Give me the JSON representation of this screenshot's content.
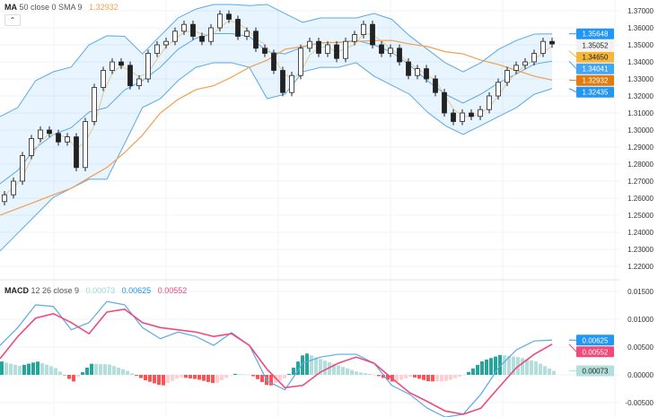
{
  "main_legend": {
    "name": "MA",
    "params": "50 close 0 SMA 9",
    "value": "1.32932"
  },
  "macd_legend": {
    "name": "MACD",
    "params": "12 26 close 9",
    "hist": "0.00073",
    "macd": "0.00625",
    "signal": "0.00552"
  },
  "colors": {
    "band": "#5aaae8",
    "band_fill": "rgba(33,150,243,0.10)",
    "ma50": "#f0a050",
    "sma9": "#e6c98f",
    "macd": "#5aaae8",
    "signal": "#f0497a",
    "hist_up": "#26a69a",
    "hist_up_light": "#b2dfdb",
    "hist_dn": "#ff5252",
    "hist_dn_light": "#ffcdd2"
  },
  "chart_data": [
    {
      "type": "candlestick",
      "ylim": [
        1.215,
        1.374
      ],
      "y_ticks": [
        "1.22000",
        "1.23000",
        "1.24000",
        "1.25000",
        "1.26000",
        "1.27000",
        "1.28000",
        "1.29000",
        "1.30000",
        "1.31000",
        "1.32000",
        "1.33000",
        "1.34000",
        "1.35000",
        "1.36000",
        "1.37000"
      ],
      "first_open": 1.258,
      "closes": [
        1.262,
        1.27,
        1.285,
        1.295,
        1.3,
        1.298,
        1.293,
        1.296,
        1.278,
        1.305,
        1.325,
        1.335,
        1.34,
        1.338,
        1.326,
        1.33,
        1.345,
        1.35,
        1.352,
        1.358,
        1.362,
        1.355,
        1.352,
        1.36,
        1.368,
        1.365,
        1.355,
        1.358,
        1.348,
        1.345,
        1.335,
        1.322,
        1.332,
        1.348,
        1.352,
        1.345,
        1.35,
        1.342,
        1.352,
        1.356,
        1.362,
        1.35,
        1.345,
        1.348,
        1.34,
        1.332,
        1.336,
        1.33,
        1.322,
        1.31,
        1.305,
        1.31,
        1.308,
        1.312,
        1.32,
        1.328,
        1.335,
        1.338,
        1.34,
        1.345,
        1.352,
        1.3505
      ],
      "bollinger_upper": [
        1.3079,
        1.3132,
        1.329,
        1.3342,
        1.337,
        1.35,
        1.3553,
        1.355,
        1.3447,
        1.3553,
        1.3658,
        1.371,
        1.3737,
        1.3737,
        1.373,
        1.3737,
        1.3684,
        1.3632,
        1.3658,
        1.3658,
        1.3658,
        1.3684,
        1.365,
        1.3553,
        1.3474,
        1.3395,
        1.3342,
        1.3395,
        1.3474,
        1.3526,
        1.3563,
        1.35648
      ],
      "bollinger_lower": [
        1.229,
        1.2395,
        1.25,
        1.2605,
        1.2658,
        1.2711,
        1.2711,
        1.2921,
        1.3132,
        1.3184,
        1.329,
        1.3368,
        1.3395,
        1.3395,
        1.3368,
        1.3184,
        1.321,
        1.3342,
        1.3368,
        1.3368,
        1.3395,
        1.3316,
        1.3263,
        1.321,
        1.3105,
        1.3026,
        1.2974,
        1.3026,
        1.3079,
        1.3132,
        1.321,
        1.32435
      ],
      "ma50": [
        1.25,
        1.254,
        1.2579,
        1.262,
        1.2658,
        1.272,
        1.278,
        1.2868,
        1.297,
        1.31,
        1.318,
        1.3237,
        1.326,
        1.331,
        1.3368,
        1.341,
        1.3474,
        1.349,
        1.3511,
        1.3515,
        1.352,
        1.3525,
        1.3526,
        1.3505,
        1.349,
        1.346,
        1.3447,
        1.341,
        1.3384,
        1.335,
        1.3316,
        1.32932
      ],
      "price_labels": [
        {
          "text": "1.35648",
          "role": "bollinger-upper",
          "value": 1.35648,
          "bg": "#2196f3",
          "fg": "#fff"
        },
        {
          "text": "1.35052",
          "role": "last-close",
          "value": 1.35052,
          "bg": "#f2f2f2",
          "fg": "#222"
        },
        {
          "text": "1.34650",
          "role": "sma9",
          "value": 1.3465,
          "bg": "#f5b73b",
          "fg": "#222"
        },
        {
          "text": "1.34041",
          "role": "bollinger-basis",
          "value": 1.34041,
          "bg": "#42a5f5",
          "fg": "#fff"
        },
        {
          "text": "1.32932",
          "role": "ma50",
          "value": 1.32932,
          "bg": "#e07b12",
          "fg": "#fff"
        },
        {
          "text": "1.32435",
          "role": "bollinger-lower",
          "value": 1.32435,
          "bg": "#2196f3",
          "fg": "#fff"
        }
      ]
    },
    {
      "type": "macd",
      "ylim": [
        -0.0065,
        0.0165
      ],
      "y_ticks": [
        "0.01500",
        "0.01000",
        "0.00500",
        "0.00000",
        "-0.00500"
      ],
      "y_tick_values": [
        0.015,
        0.01,
        0.005,
        0,
        -0.005
      ],
      "macd": [
        0.0053,
        0.0085,
        0.0126,
        0.0123,
        0.0081,
        0.0094,
        0.0132,
        0.0126,
        0.0085,
        0.0065,
        0.0077,
        0.0069,
        0.0053,
        0.0076,
        0.0053,
        -0.0011,
        -0.0027,
        0.0021,
        0.0032,
        0.0037,
        0.0037,
        0.0021,
        -0.0019,
        -0.0035,
        -0.006,
        -0.0076,
        -0.0071,
        -0.0035,
        0.0013,
        0.0045,
        0.0061,
        0.00625
      ],
      "signal": [
        0.0029,
        0.0069,
        0.0102,
        0.011,
        0.0094,
        0.0074,
        0.0113,
        0.0118,
        0.0094,
        0.0085,
        0.0081,
        0.0077,
        0.0069,
        0.0074,
        0.0053,
        0.001,
        -0.0023,
        -0.0019,
        0.0005,
        0.0021,
        0.0032,
        0.0021,
        -0.0006,
        -0.0032,
        -0.0048,
        -0.0065,
        -0.0071,
        -0.006,
        -0.0023,
        0.0013,
        0.0037,
        0.00552
      ],
      "value_labels": [
        {
          "text": "0.00625",
          "value": 0.00625,
          "bg": "#2196f3",
          "fg": "#fff"
        },
        {
          "text": "0.00552",
          "value": 0.00552,
          "bg": "#f0497a",
          "fg": "#fff"
        },
        {
          "text": "0.00073",
          "value": 0.00073,
          "bg": "#b2dfdb",
          "fg": "#222"
        }
      ]
    }
  ]
}
